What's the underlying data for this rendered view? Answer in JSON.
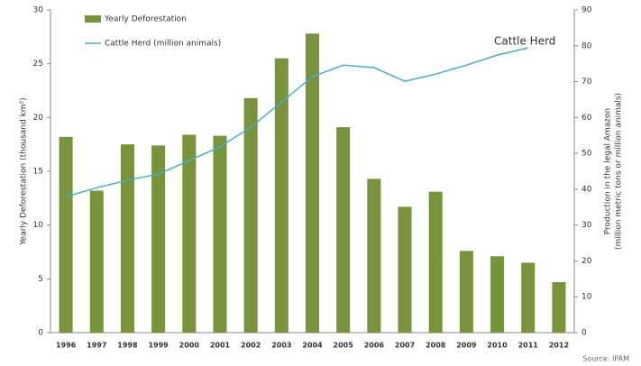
{
  "chart_data": {
    "type": "bar",
    "categories": [
      "1996",
      "1997",
      "1998",
      "1999",
      "2000",
      "2001",
      "2002",
      "2003",
      "2004",
      "2005",
      "2006",
      "2007",
      "2008",
      "2009",
      "2010",
      "2011",
      "2012"
    ],
    "series": [
      {
        "name": "Yearly Deforestation",
        "type": "bar",
        "color": "#77933c",
        "values": [
          18.2,
          13.2,
          17.5,
          17.4,
          18.4,
          18.3,
          21.8,
          25.5,
          27.8,
          19.1,
          14.3,
          11.7,
          13.1,
          7.6,
          7.1,
          6.5,
          4.7
        ]
      },
      {
        "name": "Cattle Herd (million animals)",
        "type": "line",
        "axis": "y2",
        "color": "#4bacc6",
        "values": [
          37.9,
          40.4,
          42.5,
          44.2,
          48,
          51.8,
          57.3,
          64.3,
          71.4,
          74.6,
          73.9,
          70.1,
          72.1,
          74.6,
          77.4,
          79.4,
          null
        ]
      }
    ],
    "ylabel": "Yearly Deforestation (thousand km²)",
    "y2label": [
      "Production in the legal Amazon",
      "(million metric tons or million animals)"
    ],
    "annotation": "Cattle Herd",
    "source": "Source: IPAM",
    "ylim": [
      0,
      30
    ],
    "yticks": [
      0,
      5,
      10,
      15,
      20,
      25,
      30
    ],
    "y2lim": [
      0,
      90
    ],
    "y2ticks": [
      0,
      10,
      20,
      30,
      40,
      50,
      60,
      70,
      80,
      90
    ],
    "legend": "top-left"
  }
}
